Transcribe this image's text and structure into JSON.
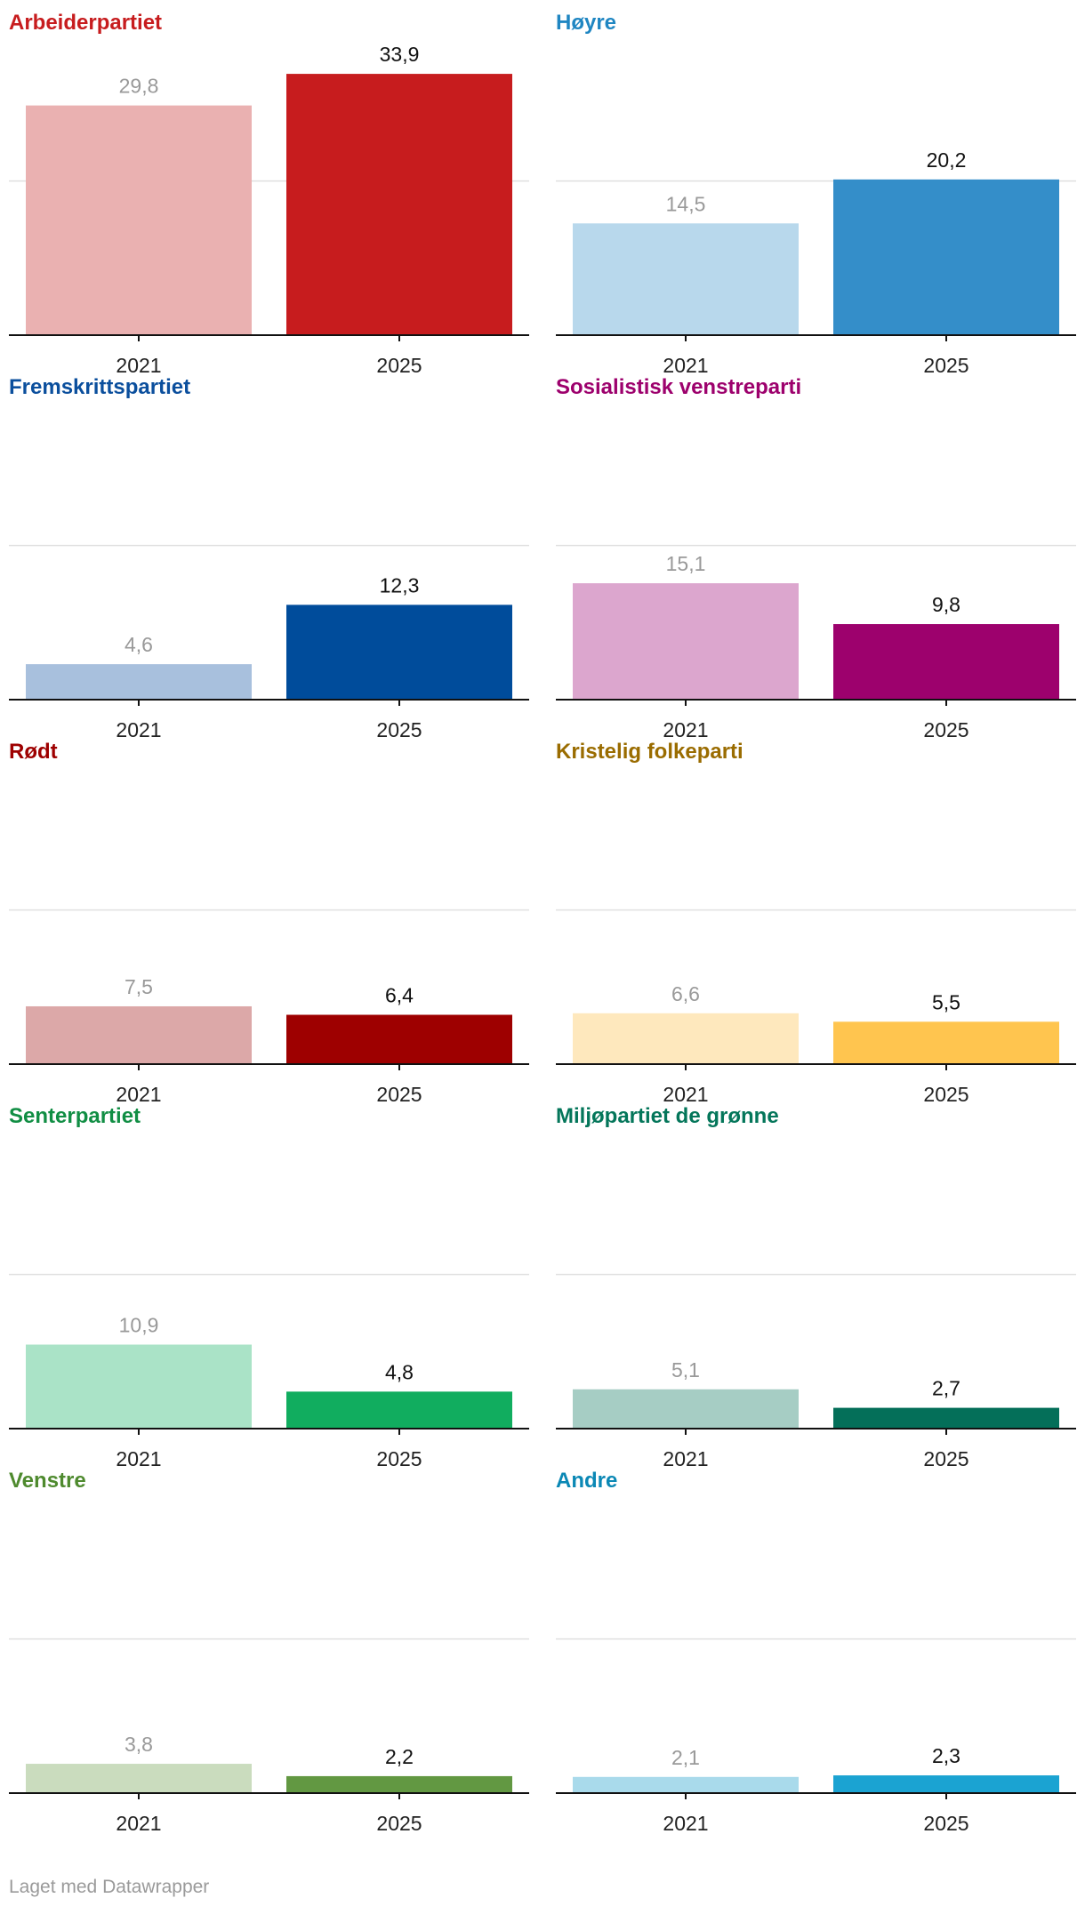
{
  "years": [
    "2021",
    "2025"
  ],
  "chart_data": [
    {
      "type": "bar",
      "title": "Arbeiderpartiet",
      "categories": [
        "2021",
        "2025"
      ],
      "values": [
        29.8,
        33.9
      ],
      "labels": [
        "29,8",
        "33,9"
      ],
      "ylim": [
        0,
        40
      ],
      "gridlines": [
        20
      ],
      "colors": [
        "#eab1b1",
        "#c71c1e"
      ]
    },
    {
      "type": "bar",
      "title": "Høyre",
      "categories": [
        "2021",
        "2025"
      ],
      "values": [
        14.5,
        20.2
      ],
      "labels": [
        "14,5",
        "20,2"
      ],
      "ylim": [
        0,
        40
      ],
      "gridlines": [
        20
      ],
      "colors": [
        "#b8d8ec",
        "#348ec9"
      ]
    },
    {
      "type": "bar",
      "title": "Fremskrittspartiet",
      "categories": [
        "2021",
        "2025"
      ],
      "values": [
        4.6,
        12.3
      ],
      "labels": [
        "4,6",
        "12,3"
      ],
      "ylim": [
        0,
        20
      ],
      "gridlines": [
        20
      ],
      "colors": [
        "#a8c0dd",
        "#004c9b"
      ]
    },
    {
      "type": "bar",
      "title": "Sosialistisk venstreparti",
      "categories": [
        "2021",
        "2025"
      ],
      "values": [
        15.1,
        9.8
      ],
      "labels": [
        "15,1",
        "9,8"
      ],
      "ylim": [
        0,
        20
      ],
      "gridlines": [
        20
      ],
      "colors": [
        "#dca6ce",
        "#9d016d"
      ]
    },
    {
      "type": "bar",
      "title": "Rødt",
      "categories": [
        "2021",
        "2025"
      ],
      "values": [
        7.5,
        6.4
      ],
      "labels": [
        "7,5",
        "6,4"
      ],
      "ylim": [
        0,
        20
      ],
      "gridlines": [
        20
      ],
      "colors": [
        "#dca8a8",
        "#9e0000"
      ]
    },
    {
      "type": "bar",
      "title": "Kristelig folkeparti",
      "categories": [
        "2021",
        "2025"
      ],
      "values": [
        6.6,
        5.5
      ],
      "labels": [
        "6,6",
        "5,5"
      ],
      "ylim": [
        0,
        20
      ],
      "gridlines": [
        20
      ],
      "colors": [
        "#fee8bd",
        "#ffc54f"
      ]
    },
    {
      "type": "bar",
      "title": "Senterpartiet",
      "categories": [
        "2021",
        "2025"
      ],
      "values": [
        10.9,
        4.8
      ],
      "labels": [
        "10,9",
        "4,8"
      ],
      "ylim": [
        0,
        20
      ],
      "gridlines": [
        20
      ],
      "colors": [
        "#aae3c7",
        "#11ad5f"
      ]
    },
    {
      "type": "bar",
      "title": "Miljøpartiet de grønne",
      "categories": [
        "2021",
        "2025"
      ],
      "values": [
        5.1,
        2.7
      ],
      "labels": [
        "5,1",
        "2,7"
      ],
      "ylim": [
        0,
        20
      ],
      "gridlines": [
        20
      ],
      "colors": [
        "#a6cdc4",
        "#046f59"
      ]
    },
    {
      "type": "bar",
      "title": "Venstre",
      "categories": [
        "2021",
        "2025"
      ],
      "values": [
        3.8,
        2.2
      ],
      "labels": [
        "3,8",
        "2,2"
      ],
      "ylim": [
        0,
        20
      ],
      "gridlines": [
        20
      ],
      "colors": [
        "#cadcbe",
        "#629842"
      ]
    },
    {
      "type": "bar",
      "title": "Andre",
      "categories": [
        "2021",
        "2025"
      ],
      "values": [
        2.1,
        2.3
      ],
      "labels": [
        "2,1",
        "2,3"
      ],
      "ylim": [
        0,
        20
      ],
      "gridlines": [
        20
      ],
      "colors": [
        "#a9daeb",
        "#1ba3d2"
      ]
    }
  ],
  "title_colors": [
    "#c71c1e",
    "#1f86c2",
    "#0b4f9d",
    "#9d016d",
    "#9e0000",
    "#9a6c00",
    "#118e44",
    "#04765a",
    "#4e8a2e",
    "#0b88b5"
  ],
  "value_label_colors": {
    "previous": "#999999",
    "current": "#111111"
  },
  "footer": {
    "credit": "Laget med Datawrapper"
  }
}
